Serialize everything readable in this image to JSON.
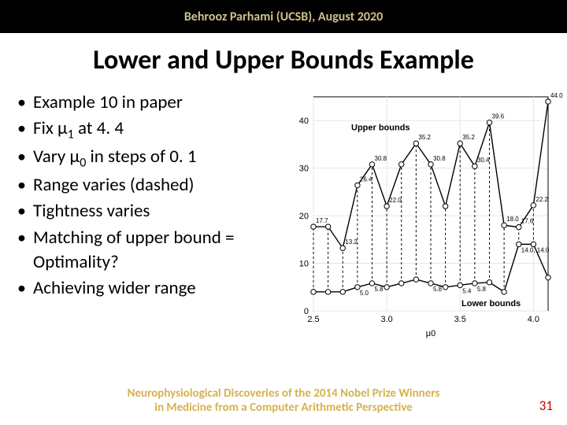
{
  "header": {
    "text": "Behrooz Parhami (UCSB), August 2020"
  },
  "title": "Lower and Upper Bounds Example",
  "bullets": [
    "Example 10 in paper",
    "Fix μ<sub>1</sub> at 4. 4",
    "Vary μ<sub>0</sub> in steps of 0. 1",
    "Range varies (dashed)",
    "Tightness varies",
    "Matching of upper bound = Optimality?",
    "Achieving wider range"
  ],
  "footer": {
    "line1": "Neurophysiological Discoveries of the 2014 Nobel Prize Winners",
    "line2": "in Medicine from a Computer Arithmetic Perspective"
  },
  "page": "31",
  "chart": {
    "type": "line",
    "background_color": "#ffffff",
    "grid_color": "#e5e5e5",
    "axis_color": "#000000",
    "xlabel": "μ0",
    "upper_label": "Upper bounds",
    "lower_label": "Lower bounds",
    "xlim": [
      2.5,
      4.1
    ],
    "ylim": [
      0,
      45
    ],
    "xticks": [
      2.5,
      3.0,
      3.5,
      4.0
    ],
    "yticks": [
      0,
      10,
      20,
      30,
      40
    ],
    "label_fontsize": 11,
    "tick_fontsize": 11,
    "pt_label_fontsize": 8,
    "line_color": "#000000",
    "dash_color": "#000000",
    "marker_fill": "#ffffff",
    "marker_stroke": "#000000",
    "marker_radius": 3.2,
    "x_values": [
      2.5,
      2.6,
      2.7,
      2.8,
      2.9,
      3.0,
      3.1,
      3.2,
      3.3,
      3.4,
      3.5,
      3.6,
      3.7,
      3.8,
      3.9,
      4.0,
      4.1
    ],
    "upper": [
      17.7,
      17.7,
      13.2,
      26.4,
      30.8,
      22.0,
      30.8,
      35.2,
      30.8,
      22.0,
      35.2,
      30.4,
      39.6,
      18.0,
      17.6,
      22.2,
      44.0
    ],
    "lower": [
      4.0,
      4.0,
      4.0,
      5.0,
      5.8,
      5.0,
      5.8,
      6.6,
      5.8,
      5.0,
      5.4,
      5.8,
      6.0,
      4.0,
      14.0,
      14.0,
      7.0
    ],
    "point_labels_upper": {
      "0": "17.7",
      "2": "13.2",
      "3": "26.4",
      "4": "30.8",
      "5": "22.0",
      "7": "35.2",
      "8": "30.8",
      "10": "35.2",
      "11": "30.4",
      "12": "39.6",
      "13": "18.0",
      "14": "17.6",
      "15": "22.2",
      "16": "44.0"
    },
    "point_labels_lower": {
      "3": "5.0",
      "4": "5.8",
      "8": "5.8",
      "10": "5.4",
      "11": "5.8",
      "14": "14.0, 14.0"
    }
  }
}
